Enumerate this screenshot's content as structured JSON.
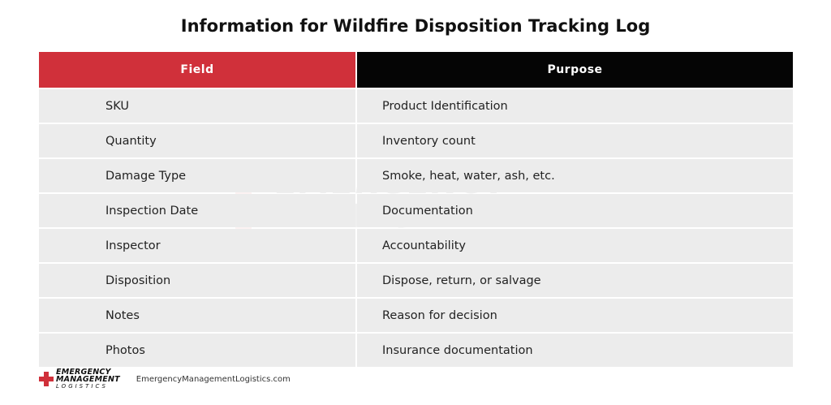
{
  "title": "Information for Wildfire Disposition Tracking Log",
  "table": {
    "headers": {
      "field": "Field",
      "purpose": "Purpose"
    },
    "rows": [
      {
        "field": "SKU",
        "purpose": "Product Identification"
      },
      {
        "field": "Quantity",
        "purpose": "Inventory count"
      },
      {
        "field": "Damage Type",
        "purpose": "Smoke, heat, water, ash, etc."
      },
      {
        "field": "Inspection Date",
        "purpose": "Documentation"
      },
      {
        "field": "Inspector",
        "purpose": "Accountability"
      },
      {
        "field": "Disposition",
        "purpose": "Dispose, return, or salvage"
      },
      {
        "field": "Notes",
        "purpose": "Reason for decision"
      },
      {
        "field": "Photos",
        "purpose": "Insurance documentation"
      }
    ]
  },
  "watermark": {
    "line1": "EMERGENCY",
    "line2": "MANAGEMENT",
    "line3": "LOGISTICS"
  },
  "footer": {
    "logo_line1": "EMERGENCY",
    "logo_line2": "MANAGEMENT",
    "logo_line3": "LOGISTICS",
    "website": "EmergencyManagementLogistics.com"
  },
  "colors": {
    "header_field_bg": "#d0303a",
    "header_purpose_bg": "#050505",
    "row_bg": "#ececec"
  }
}
